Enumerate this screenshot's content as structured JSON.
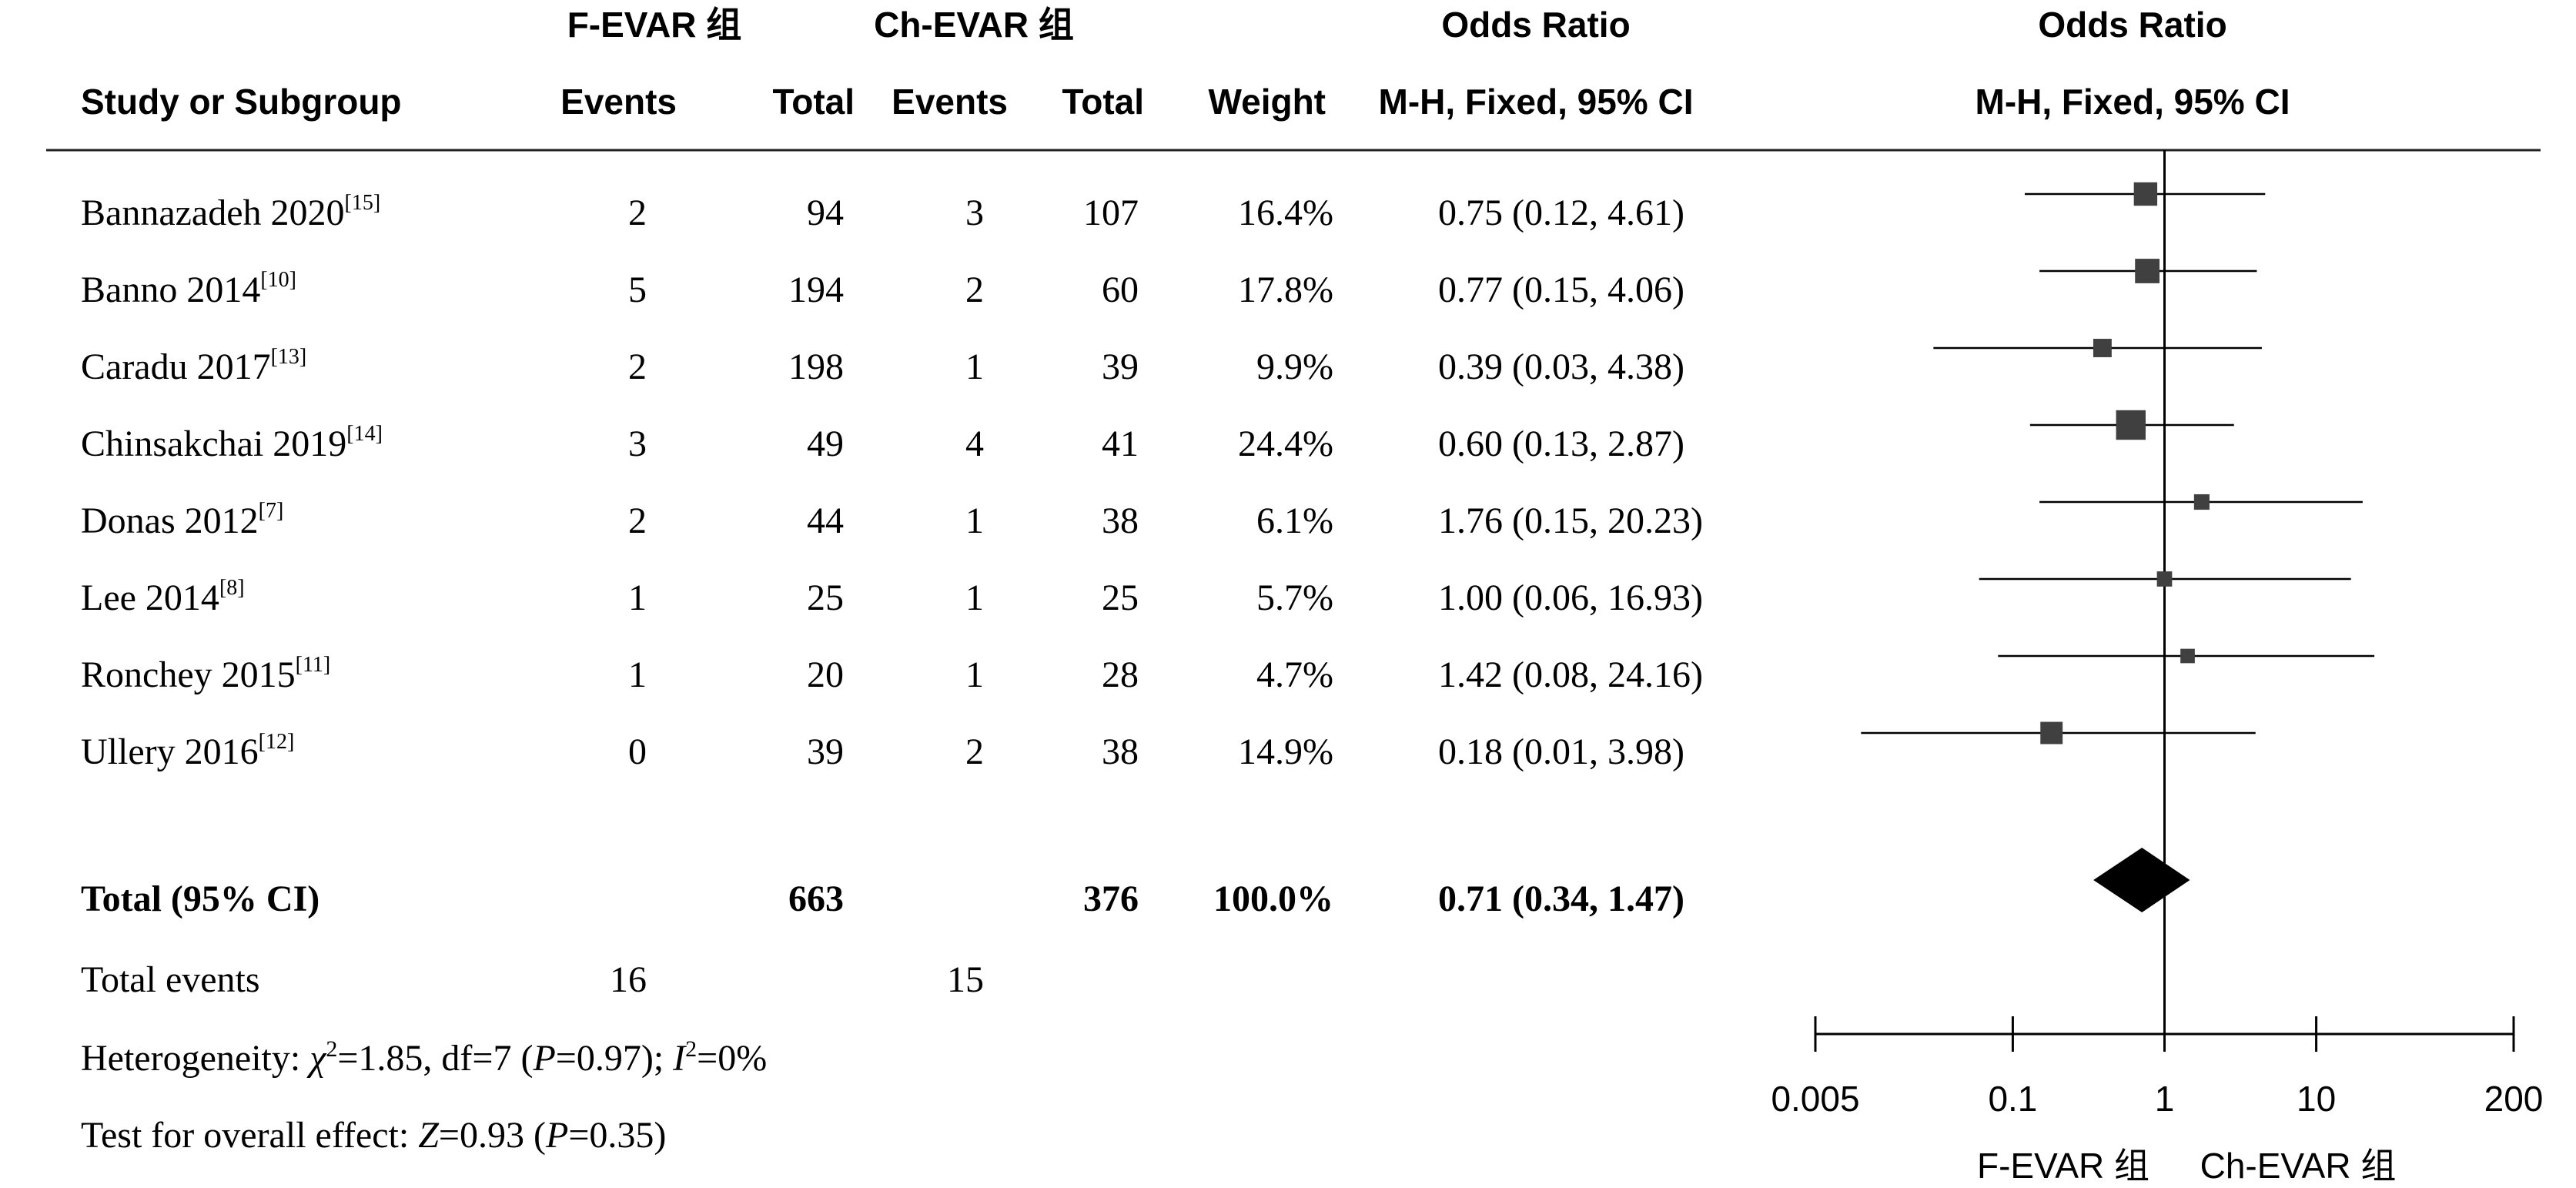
{
  "headers": {
    "group1": "F-EVAR 组",
    "group2": "Ch-EVAR 组",
    "or_title": "Odds Ratio",
    "plot_title": "Odds Ratio",
    "study_col": "Study or Subgroup",
    "events1": "Events",
    "total1": "Total",
    "events2": "Events",
    "total2": "Total",
    "weight": "Weight",
    "or_method": "M-H, Fixed, 95% CI",
    "plot_method": "M-H, Fixed, 95% CI"
  },
  "studies": [
    {
      "name": "Bannazadeh 2020",
      "ref": "[15]",
      "e1": "2",
      "t1": "94",
      "e2": "3",
      "t2": "107",
      "weight": "16.4%",
      "or_text": "0.75 (0.12, 4.61)"
    },
    {
      "name": "Banno 2014",
      "ref": "[10]",
      "e1": "5",
      "t1": "194",
      "e2": "2",
      "t2": "60",
      "weight": "17.8%",
      "or_text": "0.77 (0.15, 4.06)"
    },
    {
      "name": "Caradu 2017",
      "ref": "[13]",
      "e1": "2",
      "t1": "198",
      "e2": "1",
      "t2": "39",
      "weight": "9.9%",
      "or_text": "0.39 (0.03, 4.38)"
    },
    {
      "name": "Chinsakchai 2019",
      "ref": "[14]",
      "e1": "3",
      "t1": "49",
      "e2": "4",
      "t2": "41",
      "weight": "24.4%",
      "or_text": "0.60 (0.13, 2.87)"
    },
    {
      "name": "Donas 2012",
      "ref": "[7]",
      "e1": "2",
      "t1": "44",
      "e2": "1",
      "t2": "38",
      "weight": "6.1%",
      "or_text": "1.76 (0.15, 20.23)"
    },
    {
      "name": "Lee 2014",
      "ref": "[8]",
      "e1": "1",
      "t1": "25",
      "e2": "1",
      "t2": "25",
      "weight": "5.7%",
      "or_text": "1.00 (0.06, 16.93)"
    },
    {
      "name": "Ronchey 2015",
      "ref": "[11]",
      "e1": "1",
      "t1": "20",
      "e2": "1",
      "t2": "28",
      "weight": "4.7%",
      "or_text": "1.42 (0.08, 24.16)"
    },
    {
      "name": "Ullery 2016",
      "ref": "[12]",
      "e1": "0",
      "t1": "39",
      "e2": "2",
      "t2": "38",
      "weight": "14.9%",
      "or_text": "0.18 (0.01, 3.98)"
    }
  ],
  "total": {
    "label": "Total (95% CI)",
    "t1": "663",
    "t2": "376",
    "weight": "100.0%",
    "or_text": "0.71 (0.34, 1.47)"
  },
  "total_events": {
    "label": "Total events",
    "e1": "16",
    "e2": "15"
  },
  "heterogeneity": {
    "prefix": "Heterogeneity: ",
    "chi": "χ",
    "chi_sup": "2",
    "mid": "=1.85, df=7 (",
    "p": "P",
    "p_val": "=0.97); ",
    "i": "I",
    "i_sup": "2",
    "i_val": "=0%"
  },
  "overall": {
    "prefix": "Test for overall effect: ",
    "z": "Z",
    "z_val": "=0.93 (",
    "p": "P",
    "p_val": "=0.35)"
  },
  "axis": {
    "ticks": [
      "0.005",
      "0.1",
      "1",
      "10",
      "200"
    ],
    "favours_left": "F-EVAR 组",
    "favours_right": "Ch-EVAR 组"
  },
  "chart_data": {
    "type": "forest",
    "scale": "log",
    "xlim": [
      0.005,
      200
    ],
    "reference_line": 1,
    "x_ticks": [
      0.005,
      0.1,
      1,
      10,
      200
    ],
    "studies": [
      {
        "name": "Bannazadeh 2020",
        "or": 0.75,
        "lo": 0.12,
        "hi": 4.61,
        "weight": 16.4
      },
      {
        "name": "Banno 2014",
        "or": 0.77,
        "lo": 0.15,
        "hi": 4.06,
        "weight": 17.8
      },
      {
        "name": "Caradu 2017",
        "or": 0.39,
        "lo": 0.03,
        "hi": 4.38,
        "weight": 9.9
      },
      {
        "name": "Chinsakchai 2019",
        "or": 0.6,
        "lo": 0.13,
        "hi": 2.87,
        "weight": 24.4
      },
      {
        "name": "Donas 2012",
        "or": 1.76,
        "lo": 0.15,
        "hi": 20.23,
        "weight": 6.1
      },
      {
        "name": "Lee 2014",
        "or": 1.0,
        "lo": 0.06,
        "hi": 16.93,
        "weight": 5.7
      },
      {
        "name": "Ronchey 2015",
        "or": 1.42,
        "lo": 0.08,
        "hi": 24.16,
        "weight": 4.7
      },
      {
        "name": "Ullery 2016",
        "or": 0.18,
        "lo": 0.01,
        "hi": 3.98,
        "weight": 14.9
      }
    ],
    "pooled": {
      "or": 0.71,
      "lo": 0.34,
      "hi": 1.47
    }
  }
}
